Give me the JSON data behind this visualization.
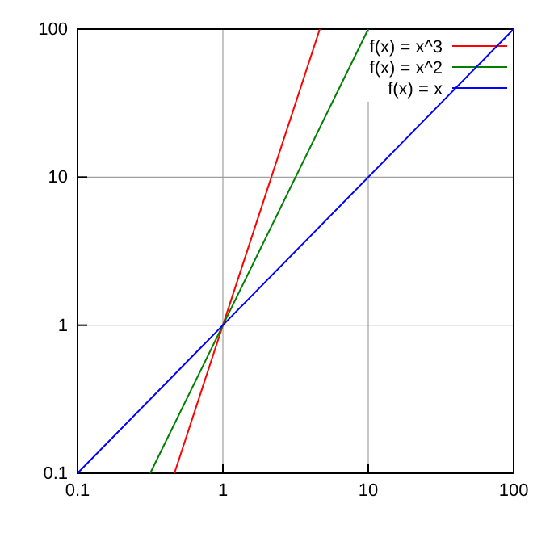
{
  "chart_data": {
    "type": "line",
    "log": "xy",
    "grid": true,
    "legend": "top right",
    "marker": "none",
    "line_style": "solid",
    "xlim": [
      0.1,
      100
    ],
    "ylim": [
      0.1,
      100
    ],
    "xticks": [
      0.1,
      1,
      10,
      100
    ],
    "yticks": [
      0.1,
      1,
      10,
      100
    ],
    "series": [
      {
        "name": "f(x) = x^3",
        "color": "#ff0000",
        "x": [
          0.4642,
          1,
          4.642
        ],
        "values": [
          0.1,
          1,
          100
        ]
      },
      {
        "name": "f(x) = x^2",
        "color": "#008000",
        "x": [
          0.3162,
          1,
          10
        ],
        "values": [
          0.1,
          1,
          100
        ]
      },
      {
        "name": "f(x) = x",
        "color": "#0000ff",
        "x": [
          0.1,
          1,
          100
        ],
        "values": [
          0.1,
          1,
          100
        ]
      }
    ]
  }
}
